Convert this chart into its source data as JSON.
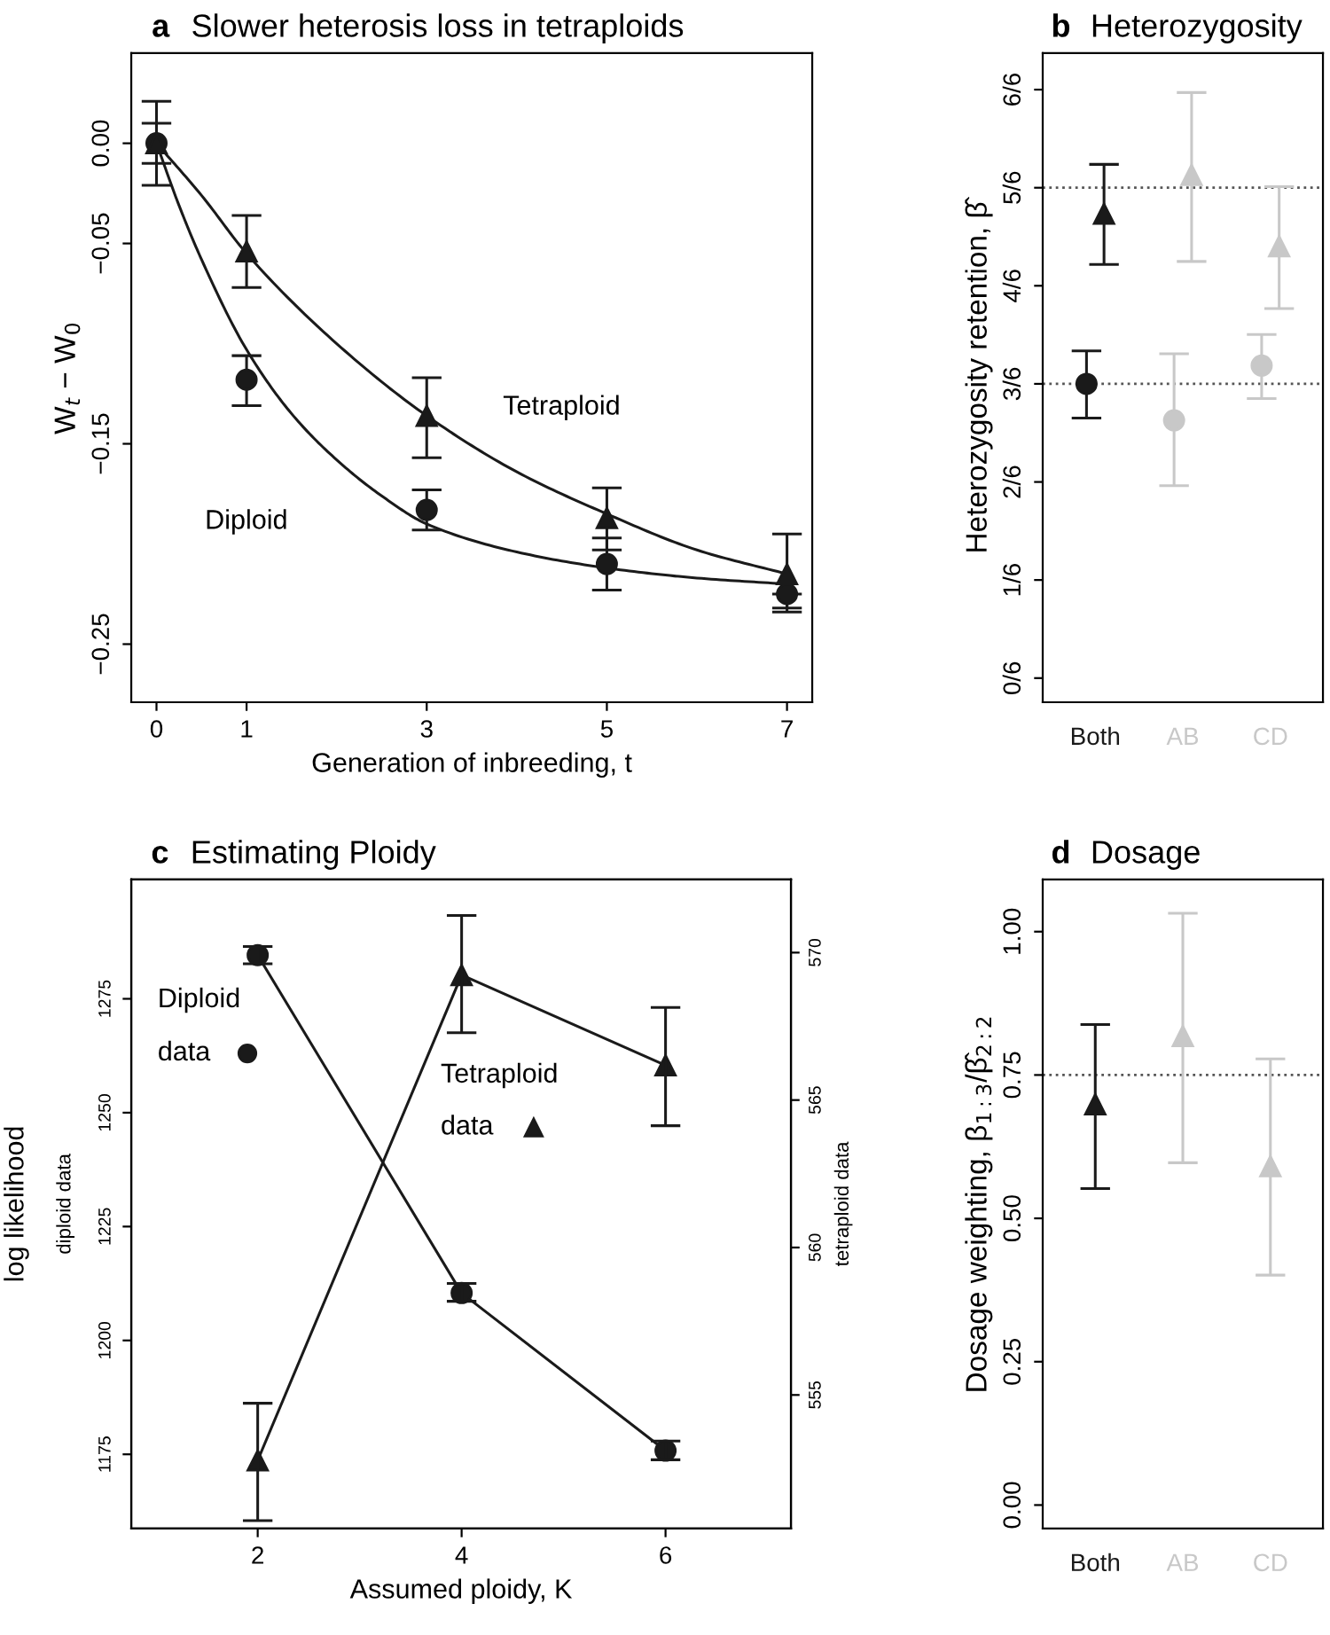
{
  "chart_data": [
    {
      "type": "scatter",
      "title": "a Slower heterosis loss in tetraploids",
      "xlabel": "Generation of inbreeding, t",
      "ylabel": "W$_{t}$ − W$_{0}$",
      "x": [
        0,
        1,
        3,
        5,
        7
      ],
      "xlim": [
        -0.28,
        7.28
      ],
      "xticks": [
        0,
        1,
        3,
        5,
        7
      ],
      "ylim": [
        -0.279,
        0.045
      ],
      "yticks": [
        {
          "value": 0,
          "label": "0.00"
        },
        {
          "value": -0.05,
          "label": "−0.05"
        },
        {
          "value": -0.15,
          "label": "−0.15"
        },
        {
          "value": -0.25,
          "label": "−0.25"
        }
      ],
      "series": [
        {
          "type": "line",
          "color": "#1a1a1a",
          "marker": "none",
          "x": [
            0,
            0.25,
            0.5,
            1,
            1.5,
            2,
            2.5,
            3,
            4,
            5,
            6,
            7
          ],
          "values": [
            0,
            -0.031,
            -0.058,
            -0.103,
            -0.135,
            -0.158,
            -0.176,
            -0.19,
            -0.204,
            -0.212,
            -0.217,
            -0.22
          ]
        },
        {
          "type": "line",
          "color": "#1a1a1a",
          "marker": "none",
          "x": [
            0,
            0.5,
            1,
            2,
            3,
            4,
            5,
            6,
            7
          ],
          "values": [
            0,
            -0.026,
            -0.055,
            -0.1,
            -0.136,
            -0.164,
            -0.185,
            -0.203,
            -0.215
          ]
        },
        {
          "type": "scatter",
          "color": "#1a1a1a",
          "marker": "circle",
          "values": [
            0,
            -0.118,
            -0.183,
            -0.21,
            -0.225
          ],
          "errors": [
            [
              -0.021,
              0.021
            ],
            [
              -0.131,
              -0.106
            ],
            [
              -0.193,
              -0.173
            ],
            [
              -0.223,
              -0.197
            ],
            [
              -0.232,
              -0.225
            ]
          ]
        },
        {
          "type": "scatter",
          "color": "#1a1a1a",
          "marker": "triangle",
          "values": [
            0,
            -0.054,
            -0.136,
            -0.187,
            -0.215
          ],
          "errors": [
            [
              -0.01,
              0.01
            ],
            [
              -0.072,
              -0.036
            ],
            [
              -0.157,
              -0.117
            ],
            [
              -0.203,
              -0.172
            ],
            [
              -0.234,
              -0.195
            ]
          ]
        }
      ],
      "annotations": [
        "Tetraploid",
        "Diploid"
      ]
    },
    {
      "type": "scatter",
      "title": "b Heterozygosity",
      "ylabel": "Heterozygosity retention, β̂",
      "categories": [
        "Both",
        "AB",
        "CD"
      ],
      "ylim": [
        -0.041,
        1.062
      ],
      "yticks": [
        {
          "value": 0,
          "label": "0/6"
        },
        {
          "value": 0.1667,
          "label": "1/6"
        },
        {
          "value": 0.3333,
          "label": "2/6"
        },
        {
          "value": 0.5,
          "label": "3/6"
        },
        {
          "value": 0.6667,
          "label": "4/6"
        },
        {
          "value": 0.8333,
          "label": "5/6"
        },
        {
          "value": 1,
          "label": "6/6"
        }
      ],
      "series": [
        {
          "marker": "triangle",
          "colors": [
            "#1a1a1a",
            "#c8c8c8",
            "#c8c8c8"
          ],
          "values": [
            0.789,
            0.855,
            0.734
          ],
          "errors": [
            [
              0.703,
              0.873
            ],
            [
              0.708,
              0.995
            ],
            [
              0.628,
              0.835
            ]
          ]
        },
        {
          "marker": "circle",
          "colors": [
            "#1a1a1a",
            "#c8c8c8",
            "#c8c8c8"
          ],
          "values": [
            0.5,
            0.438,
            0.531
          ],
          "errors": [
            [
              0.442,
              0.556
            ],
            [
              0.327,
              0.551
            ],
            [
              0.475,
              0.584
            ]
          ]
        }
      ],
      "ref_lines": [
        {
          "axis": "y",
          "value": 0.8333,
          "color": "#555555",
          "line_style": "dotted"
        },
        {
          "axis": "y",
          "value": 0.5,
          "color": "#555555",
          "line_style": "dotted"
        }
      ]
    },
    {
      "type": "line",
      "title": "c Estimating Ploidy",
      "xlabel": "Assumed ploidy, K",
      "ylabel": "log likelihood",
      "y2label": "tetraploid data",
      "x": [
        2,
        4,
        6
      ],
      "xlim": [
        0.76,
        7.23
      ],
      "xticks": [
        2,
        4,
        6
      ],
      "ylim": [
        1158.7,
        1301.2
      ],
      "yticks": [
        1175,
        1200,
        1225,
        1250,
        1275
      ],
      "y2lim": [
        550.47,
        572.48
      ],
      "y2ticks": [
        555,
        560,
        565,
        570
      ],
      "series": [
        {
          "name": "Diploid data",
          "color": "#1a1a1a",
          "marker": "circle",
          "values": [
            1284.6,
            1210.4,
            1175.8
          ],
          "errors": [
            [
              1282.7,
              1286.5
            ],
            [
              1208.6,
              1212.5
            ],
            [
              1173.8,
              1177.9
            ]
          ]
        },
        {
          "name": "Tetraploid data",
          "axis": "y2",
          "color": "#1a1a1a",
          "marker": "triangle",
          "values": [
            552.78,
            569.24,
            566.18
          ],
          "errors": [
            [
              550.74,
              554.72
            ],
            [
              567.28,
              571.26
            ],
            [
              564.13,
              568.14
            ]
          ]
        }
      ],
      "annotations": [
        "diploid data"
      ]
    },
    {
      "type": "scatter",
      "title": "d Dosage",
      "ylabel": "Dosage weighting, β$_{1:3}$/β̂$_{2:2}$",
      "categories": [
        "Both",
        "AB",
        "CD"
      ],
      "ylim": [
        -0.041,
        1.091
      ],
      "yticks": [
        {
          "value": 0,
          "label": "0.00"
        },
        {
          "value": 0.25,
          "label": "0.25"
        },
        {
          "value": 0.5,
          "label": "0.50"
        },
        {
          "value": 0.75,
          "label": "0.75"
        },
        {
          "value": 1,
          "label": "1.00"
        }
      ],
      "series": [
        {
          "marker": "triangle",
          "colors": [
            "#1a1a1a",
            "#c8c8c8",
            "#c8c8c8"
          ],
          "values": [
            0.699,
            0.818,
            0.591
          ],
          "errors": [
            [
              0.552,
              0.838
            ],
            [
              0.597,
              1.032
            ],
            [
              0.401,
              0.778
            ]
          ]
        }
      ],
      "ref_lines": [
        {
          "axis": "y",
          "value": 0.75,
          "color": "#555555",
          "line_style": "dotted"
        }
      ]
    }
  ]
}
